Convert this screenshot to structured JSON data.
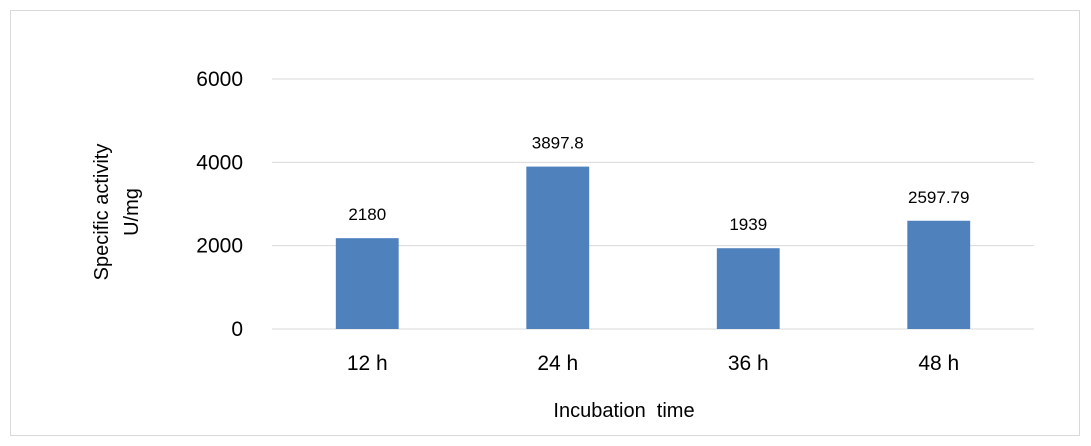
{
  "chart_data": {
    "type": "bar",
    "categories": [
      "12 h",
      "24 h",
      "36 h",
      "48 h"
    ],
    "values": [
      2180,
      3897.8,
      1939,
      2597.79
    ],
    "data_labels": [
      "2180",
      "3897.8",
      "1939",
      "2597.79"
    ],
    "title": "",
    "xlabel": "Incubation  time",
    "ylabel": [
      "Specific activity",
      "U/mg"
    ],
    "ylim": [
      0,
      6000
    ],
    "yticks": [
      0,
      2000,
      4000,
      6000
    ],
    "ytick_labels": [
      "0",
      "2000",
      "4000",
      "6000"
    ],
    "grid": true,
    "legend": "none",
    "colors": {
      "bar": "#4F81BD",
      "grid": "#d9d9d9",
      "frame": "#d9d9d9"
    }
  }
}
